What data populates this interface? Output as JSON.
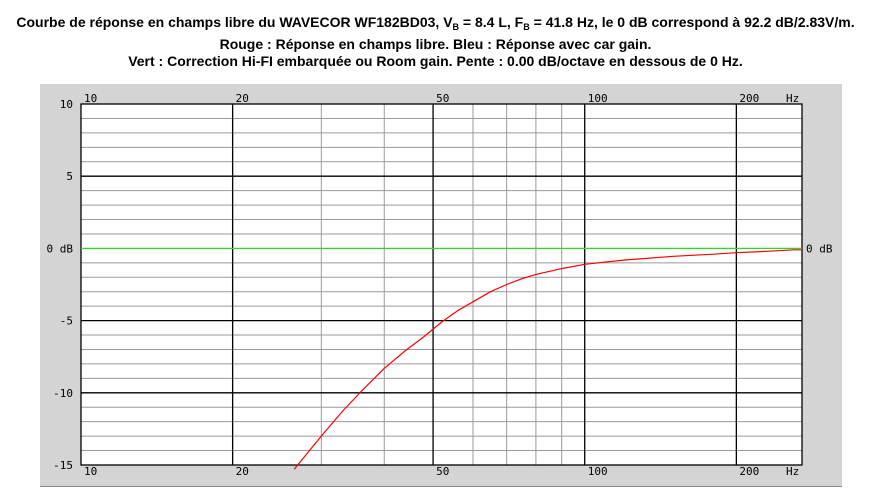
{
  "chart_data": {
    "type": "line",
    "title_lines": [
      "Courbe de réponse en champs libre du WAVECOR WF182BD03, V",
      "Rouge : Réponse en champs libre. Bleu : Réponse avec car gain.",
      "Vert : Correction Hi-FI embarquée ou Room gain. Pente : 0.00 dB/octave en dessous de 0 Hz."
    ],
    "title_parts": {
      "a": "Courbe de réponse en champs libre du WAVECOR WF182BD03, V",
      "sub1": "B",
      "b": " = 8.4 L, F",
      "sub2": "B",
      "c": " = 41.8 Hz, le 0 dB correspond à 92.2 dB/2.83V/m."
    },
    "x_scale": "log",
    "xlim": [
      10,
      270
    ],
    "ylim": [
      -15,
      10
    ],
    "x_tick_labels": [
      {
        "value": 10,
        "label": "10"
      },
      {
        "value": 20,
        "label": "20"
      },
      {
        "value": 50,
        "label": "50"
      },
      {
        "value": 100,
        "label": "100"
      },
      {
        "value": 200,
        "label": "200"
      }
    ],
    "x_unit_label": "Hz",
    "y_tick_labels": [
      {
        "value": 10,
        "label": "10"
      },
      {
        "value": 5,
        "label": "5"
      },
      {
        "value": 0,
        "label": "0 dB"
      },
      {
        "value": -5,
        "label": "-5"
      },
      {
        "value": -10,
        "label": "-10"
      },
      {
        "value": -15,
        "label": "-15"
      }
    ],
    "y_right_label": "0 dB",
    "grid": true,
    "series": [
      {
        "name": "Rouge",
        "color": "#ff0000",
        "x": [
          26.5,
          30,
          33,
          36,
          40,
          44,
          48,
          52,
          56,
          60,
          65,
          70,
          75,
          80,
          90,
          100,
          120,
          150,
          180,
          200,
          230,
          260,
          270
        ],
        "y": [
          -15.3,
          -13.0,
          -11.3,
          -9.9,
          -8.3,
          -7.1,
          -6.1,
          -5.1,
          -4.3,
          -3.7,
          -3.0,
          -2.5,
          -2.1,
          -1.8,
          -1.4,
          -1.1,
          -0.8,
          -0.55,
          -0.4,
          -0.3,
          -0.2,
          -0.1,
          -0.1
        ]
      },
      {
        "name": "Vert",
        "color": "#22dd22",
        "x": [
          10,
          270
        ],
        "y": [
          0,
          0
        ]
      }
    ]
  }
}
